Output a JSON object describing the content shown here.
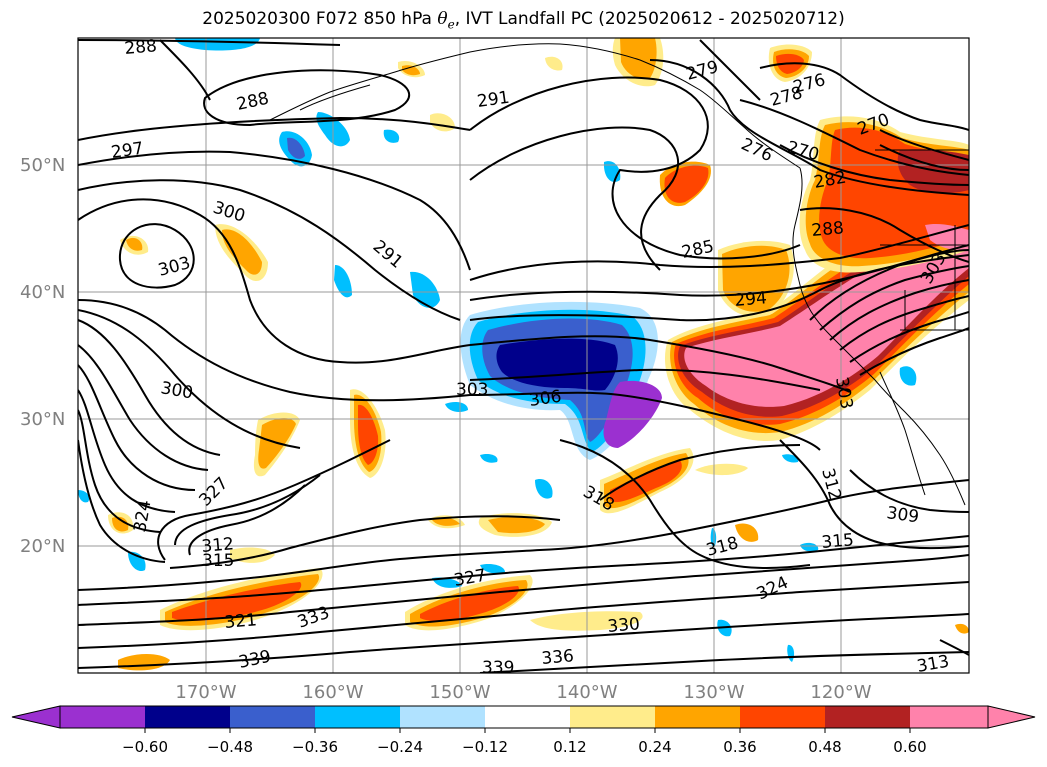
{
  "title": {
    "prefix": "2025020300 F072 850 hPa ",
    "theta": "θ",
    "theta_sub": "e",
    "suffix": ", IVT Landfall PC (2025020612 - 2025020712)"
  },
  "latitude_labels": [
    "50°N",
    "40°N",
    "30°N",
    "20°N"
  ],
  "longitude_labels": [
    "170°W",
    "160°W",
    "150°W",
    "140°W",
    "130°W",
    "120°W"
  ],
  "contour_labels": [
    "288",
    "288",
    "291",
    "297",
    "300",
    "303",
    "291",
    "285",
    "279",
    "276",
    "278",
    "270",
    "276",
    "270",
    "282",
    "288",
    "294",
    "303",
    "306",
    "300",
    "318",
    "312",
    "309",
    "315",
    "318",
    "324",
    "327",
    "330",
    "336",
    "339",
    "333",
    "321",
    "339",
    "313",
    "315",
    "312",
    "324",
    "327",
    "303",
    "303"
  ],
  "colorbar": {
    "ticks": [
      "−0.60",
      "−0.48",
      "−0.36",
      "−0.24",
      "−0.12",
      "0.12",
      "0.24",
      "0.36",
      "0.48",
      "0.60"
    ],
    "colors": [
      "#9b30d0",
      "#00008b",
      "#3a5fcd",
      "#00bfff",
      "#b0e2ff",
      "#ffffff",
      "#ffec8b",
      "#ffa500",
      "#ff4500",
      "#b22222",
      "#ff82ab"
    ],
    "under_color": "#9b30d0",
    "over_color": "#ff82ab"
  }
}
